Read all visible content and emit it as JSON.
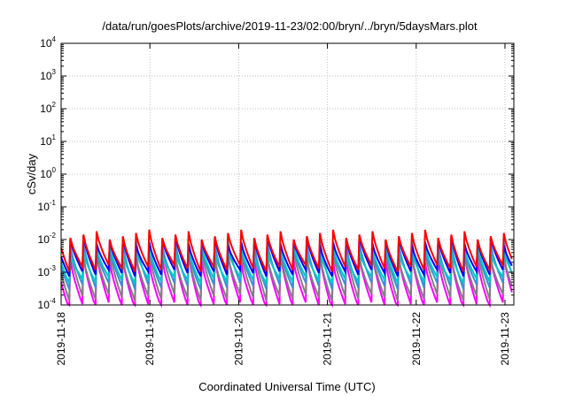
{
  "chart_data": {
    "type": "line",
    "title": "/data/run/goesPlots/archive/2019-11-23/02:00/bryn/../bryn/5daysMars.plot",
    "xlabel": "Coordinated Universal Time (UTC)",
    "ylabel": "cSv/day",
    "x_ticks": [
      "2019-11-18",
      "2019-11-19",
      "2019-11-20",
      "2019-11-21",
      "2019-11-22",
      "2019-11-23"
    ],
    "xlim_days": [
      0,
      5.1
    ],
    "y_scale": "log",
    "ylim": [
      0.0001,
      10000
    ],
    "y_ticks": [
      {
        "base": "10",
        "exp": "-4"
      },
      {
        "base": "10",
        "exp": "-3"
      },
      {
        "base": "10",
        "exp": "-2"
      },
      {
        "base": "10",
        "exp": "-1"
      },
      {
        "base": "10",
        "exp": "0"
      },
      {
        "base": "10",
        "exp": "1"
      },
      {
        "base": "10",
        "exp": "2"
      },
      {
        "base": "10",
        "exp": "3"
      },
      {
        "base": "10",
        "exp": "4"
      }
    ],
    "grid": true,
    "legend": "none",
    "cycle_days": 0.148,
    "series": [
      {
        "color": "#ff00ff",
        "peak": 0.003,
        "trough": 0.0001
      },
      {
        "color": "#808080",
        "peak": 0.004,
        "trough": 0.00018
      },
      {
        "color": "#3c8fd8",
        "peak": 0.007,
        "trough": 0.0004
      },
      {
        "color": "#00c8c8",
        "peak": 0.005,
        "trough": 0.0006
      },
      {
        "color": "#0000ff",
        "peak": 0.01,
        "trough": 0.001
      },
      {
        "color": "#ff0000",
        "peak": 0.015,
        "trough": 0.0014
      }
    ]
  }
}
